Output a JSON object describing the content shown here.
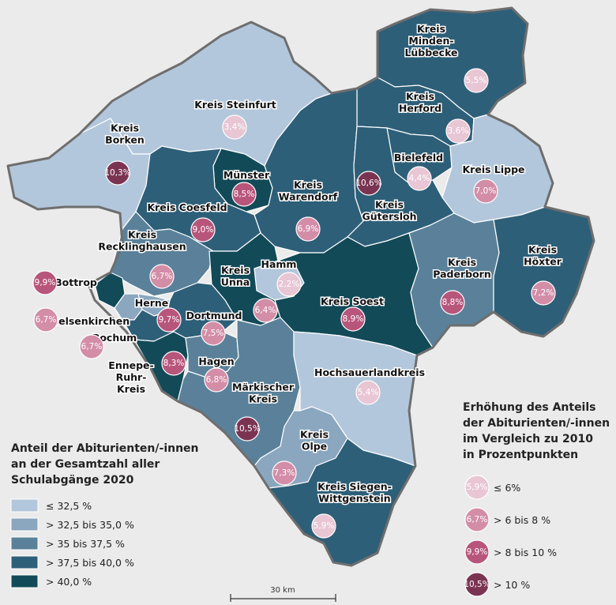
{
  "colors": {
    "c1": "#b3c7dc",
    "c2": "#8ba7bf",
    "c3": "#5a8199",
    "c4": "#2e5f78",
    "c5": "#124a58",
    "b1": "#e8c6d4",
    "b2": "#d38da7",
    "b3": "#b8557b",
    "b4": "#7a3451"
  },
  "legend_share": {
    "title": [
      "Anteil der Abiturienten/-innen",
      "an der Gesamtzahl aller",
      "Schulabgänge 2020"
    ],
    "items": [
      {
        "label": "≤ 32,5 %",
        "color": "c1"
      },
      {
        "label": "> 32,5 bis 35,0 %",
        "color": "c2"
      },
      {
        "label": "> 35 bis 37,5 %",
        "color": "c3"
      },
      {
        "label": "> 37,5 bis 40,0 %",
        "color": "c4"
      },
      {
        "label": "> 40,0 %",
        "color": "c5"
      }
    ]
  },
  "legend_increase": {
    "title": [
      "Erhöhung des Anteils",
      "der Abiturienten/-innen",
      "im Vergleich zu 2010",
      "in Prozentpunkten"
    ],
    "items": [
      {
        "sample": "5,9%",
        "label": "≤ 6%",
        "color": "b1"
      },
      {
        "sample": "6,7%",
        "label": "> 6 bis 8 %",
        "color": "b2"
      },
      {
        "sample": "9,9%",
        "label": "> 8 bis 10 %",
        "color": "b3"
      },
      {
        "sample": "10,5%",
        "label": "> 10 %",
        "color": "b4"
      }
    ]
  },
  "scale": {
    "label": "30 km"
  },
  "regions": [
    {
      "id": "steinfurt",
      "name": [
        "Kreis Steinfurt"
      ],
      "value": "3,4%",
      "class": "c1",
      "bubble": "b1"
    },
    {
      "id": "borken",
      "name": [
        "Kreis",
        "Borken"
      ],
      "value": "10,3%",
      "class": "c1",
      "bubble": "b4"
    },
    {
      "id": "minden",
      "name": [
        "Kreis",
        "Minden-",
        "Lübbecke"
      ],
      "value": "5,5%",
      "class": "c4",
      "bubble": "b1"
    },
    {
      "id": "herford",
      "name": [
        "Kreis",
        "Herford"
      ],
      "value": "3,6%",
      "class": "c4",
      "bubble": "b1"
    },
    {
      "id": "bielefeld",
      "name": [
        "Bielefeld"
      ],
      "value": "4,4%",
      "class": "c4",
      "bubble": "b1"
    },
    {
      "id": "lippe",
      "name": [
        "Kreis Lippe"
      ],
      "value": "7,0%",
      "class": "c1",
      "bubble": "b2"
    },
    {
      "id": "muenster",
      "name": [
        "Münster"
      ],
      "value": "8,5%",
      "class": "c5",
      "bubble": "b3"
    },
    {
      "id": "warendorf",
      "name": [
        "Kreis",
        "Warendorf"
      ],
      "value": "6,9%",
      "class": "c4",
      "bubble": "b2"
    },
    {
      "id": "guetersloh",
      "name": [
        "Kreis",
        "Gütersloh"
      ],
      "value": "10,6%",
      "class": "c4",
      "bubble": "b4"
    },
    {
      "id": "coesfeld",
      "name": [
        "Kreis Coesfeld"
      ],
      "value": "9,0%",
      "class": "c4",
      "bubble": "b3"
    },
    {
      "id": "recklinghausen",
      "name": [
        "Kreis",
        "Recklinghausen"
      ],
      "value": "6,7%",
      "class": "c3",
      "bubble": "b2"
    },
    {
      "id": "hamm",
      "name": [
        "Hamm"
      ],
      "value": "2,2%",
      "class": "c1",
      "bubble": "b1"
    },
    {
      "id": "unna",
      "name": [
        "Kreis",
        "Unna"
      ],
      "value": "6,4%",
      "class": "c5",
      "bubble": "b2"
    },
    {
      "id": "soest",
      "name": [
        "Kreis Soest"
      ],
      "value": "8,9%",
      "class": "c5",
      "bubble": "b3"
    },
    {
      "id": "paderborn",
      "name": [
        "Kreis",
        "Paderborn"
      ],
      "value": "8,8%",
      "class": "c3",
      "bubble": "b3"
    },
    {
      "id": "hoexter",
      "name": [
        "Kreis",
        "Höxter"
      ],
      "value": "7,2%",
      "class": "c4",
      "bubble": "b2"
    },
    {
      "id": "bottrop",
      "name": [
        "Bottrop"
      ],
      "value": "9,9%",
      "class": "c5",
      "bubble": "b3"
    },
    {
      "id": "gelsenkirchen",
      "name": [
        "Gelsenkirchen"
      ],
      "value": "6,7%",
      "class": "c2",
      "bubble": "b2"
    },
    {
      "id": "herne",
      "name": [
        "Herne"
      ],
      "value": "9,7%",
      "class": "c2",
      "bubble": "b3"
    },
    {
      "id": "bochum",
      "name": [
        "Bochum"
      ],
      "value": "6,7%",
      "class": "c4",
      "bubble": "b2"
    },
    {
      "id": "dortmund",
      "name": [
        "Dortmund"
      ],
      "value": "7,5%",
      "class": "c4",
      "bubble": "b2"
    },
    {
      "id": "ennepe",
      "name": [
        "Ennepe-",
        "Ruhr-",
        "Kreis"
      ],
      "value": "8,3%",
      "class": "c5",
      "bubble": "b3"
    },
    {
      "id": "hagen",
      "name": [
        "Hagen"
      ],
      "value": "6,8%",
      "class": "c3",
      "bubble": "b2"
    },
    {
      "id": "maerkischer",
      "name": [
        "Märkischer",
        "Kreis"
      ],
      "value": "10,5%",
      "class": "c3",
      "bubble": "b4"
    },
    {
      "id": "hochsauerland",
      "name": [
        "Hochsauerlandkreis"
      ],
      "value": "5,4%",
      "class": "c1",
      "bubble": "b1"
    },
    {
      "id": "olpe",
      "name": [
        "Kreis",
        "Olpe"
      ],
      "value": "7,3%",
      "class": "c2",
      "bubble": "b2"
    },
    {
      "id": "siegen",
      "name": [
        "Kreis Siegen-",
        "Wittgenstein"
      ],
      "value": "5,9%",
      "class": "c4",
      "bubble": "b1"
    }
  ]
}
